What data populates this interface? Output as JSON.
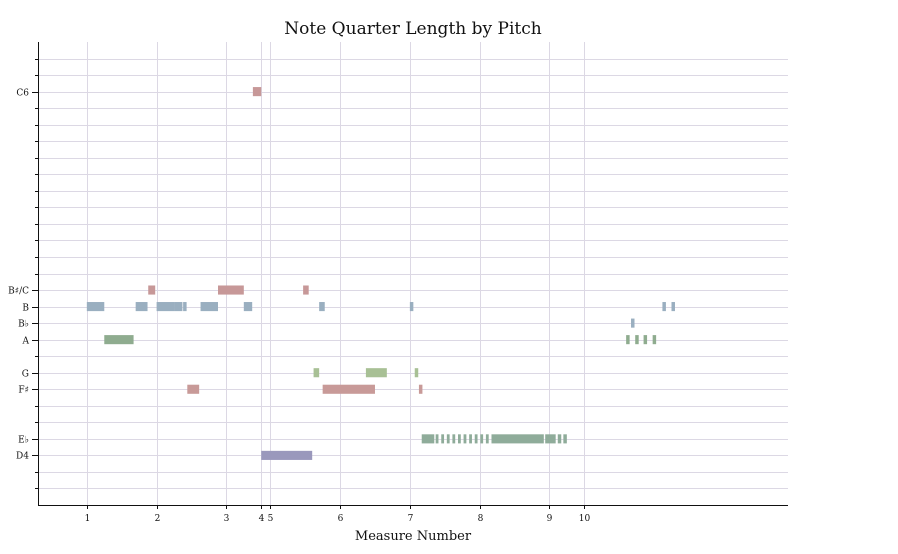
{
  "chart_data": {
    "type": "horizontal-bar",
    "title": "Note Quarter Length by Pitch",
    "xlabel": "Measure Number",
    "ylabel": "",
    "xlim": [
      0.3,
      11.05
    ],
    "ylim": [
      59,
      87
    ],
    "x_ticks": [
      {
        "label": "1",
        "value": 1
      },
      {
        "label": "2",
        "value": 2
      },
      {
        "label": "3",
        "value": 3
      },
      {
        "label": "4",
        "value": 3.5
      },
      {
        "label": "5",
        "value": 3.63
      },
      {
        "label": "6",
        "value": 4.63
      },
      {
        "label": "7",
        "value": 5.63
      },
      {
        "label": "8",
        "value": 6.63
      },
      {
        "label": "9",
        "value": 7.63
      },
      {
        "label": "10",
        "value": 8.13
      }
    ],
    "y_tick_labels": [
      {
        "label": "C6",
        "midi": 84
      },
      {
        "label": "B♯/C",
        "midi": 72
      },
      {
        "label": "B",
        "midi": 71
      },
      {
        "label": "B♭",
        "midi": 70
      },
      {
        "label": "A",
        "midi": 69
      },
      {
        "label": "G",
        "midi": 67
      },
      {
        "label": "F♯",
        "midi": 66
      },
      {
        "label": "E♭",
        "midi": 63
      },
      {
        "label": "D4",
        "midi": 62
      }
    ],
    "y_minor_ticks": [
      60,
      61,
      62,
      63,
      64,
      65,
      66,
      67,
      68,
      69,
      70,
      71,
      72,
      73,
      74,
      75,
      76,
      77,
      78,
      79,
      80,
      81,
      82,
      83,
      84,
      85,
      86
    ],
    "colors": {
      "C": "#c79898",
      "B": "#9aafc0",
      "Bb": "#9aafc0",
      "A": "#8fac8f",
      "G": "#a8c095",
      "F#": "#c89a98",
      "Eb": "#8fac9a",
      "D": "#9a98bc"
    },
    "grid": true,
    "series": [
      {
        "midi": 84,
        "color_key": "C",
        "notes": [
          [
            3.38,
            0.12
          ]
        ]
      },
      {
        "midi": 72,
        "color_key": "C",
        "notes": [
          [
            1.88,
            0.1
          ],
          [
            2.88,
            0.37
          ],
          [
            4.1,
            0.08
          ]
        ]
      },
      {
        "midi": 71,
        "color_key": "B",
        "notes": [
          [
            1.0,
            0.25
          ],
          [
            1.7,
            0.17
          ],
          [
            2.0,
            0.25
          ],
          [
            2.25,
            0.12
          ],
          [
            2.38,
            0.05
          ],
          [
            2.63,
            0.25
          ],
          [
            3.25,
            0.12
          ],
          [
            4.33,
            0.08
          ],
          [
            5.63,
            0.05
          ],
          [
            9.25,
            0.05
          ],
          [
            9.38,
            0.05
          ]
        ]
      },
      {
        "midi": 70,
        "color_key": "Bb",
        "notes": [
          [
            8.8,
            0.05
          ]
        ]
      },
      {
        "midi": 69,
        "color_key": "A",
        "notes": [
          [
            1.25,
            0.42
          ],
          [
            8.73,
            0.05
          ],
          [
            8.86,
            0.05
          ],
          [
            8.98,
            0.05
          ],
          [
            9.11,
            0.05
          ]
        ]
      },
      {
        "midi": 67,
        "color_key": "G",
        "notes": [
          [
            4.25,
            0.08
          ],
          [
            5.0,
            0.3
          ],
          [
            5.7,
            0.05
          ]
        ]
      },
      {
        "midi": 66,
        "color_key": "F#",
        "notes": [
          [
            2.44,
            0.17
          ],
          [
            4.38,
            0.75
          ],
          [
            5.76,
            0.05
          ]
        ]
      },
      {
        "midi": 63,
        "color_key": "Eb",
        "notes": [
          [
            5.8,
            0.18
          ],
          [
            6.0,
            0.04
          ],
          [
            6.08,
            0.04
          ],
          [
            6.16,
            0.04
          ],
          [
            6.24,
            0.04
          ],
          [
            6.32,
            0.04
          ],
          [
            6.4,
            0.04
          ],
          [
            6.48,
            0.04
          ],
          [
            6.56,
            0.04
          ],
          [
            6.64,
            0.04
          ],
          [
            6.72,
            0.04
          ],
          [
            6.8,
            0.75
          ],
          [
            7.57,
            0.15
          ],
          [
            7.75,
            0.05
          ],
          [
            7.83,
            0.05
          ]
        ]
      },
      {
        "midi": 62,
        "color_key": "D",
        "notes": [
          [
            3.5,
            0.73
          ]
        ]
      }
    ]
  }
}
